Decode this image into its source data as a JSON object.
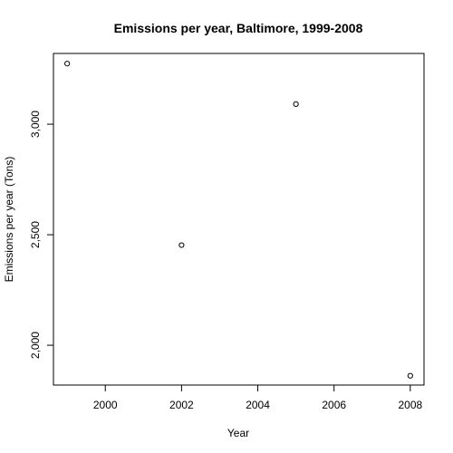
{
  "chart_data": {
    "type": "scatter",
    "title": "Emissions per year, Baltimore, 1999-2008",
    "xlabel": "Year",
    "ylabel": "Emissions per year (Tons)",
    "x_ticks": [
      2000,
      2002,
      2004,
      2006,
      2008
    ],
    "x_tick_labels": [
      "2000",
      "2002",
      "2004",
      "2006",
      "2008"
    ],
    "y_ticks": [
      2000,
      2500,
      3000
    ],
    "y_tick_labels": [
      "2,000",
      "2,500",
      "3,000"
    ],
    "xlim": [
      1998.64,
      2008.36
    ],
    "ylim": [
      1820,
      3320
    ],
    "grid": false,
    "legend": "none",
    "marker": "open-circle",
    "point_color": "#000000",
    "x": [
      1999,
      2002,
      2005,
      2008
    ],
    "y": [
      3274,
      2453,
      3091,
      1862
    ]
  }
}
